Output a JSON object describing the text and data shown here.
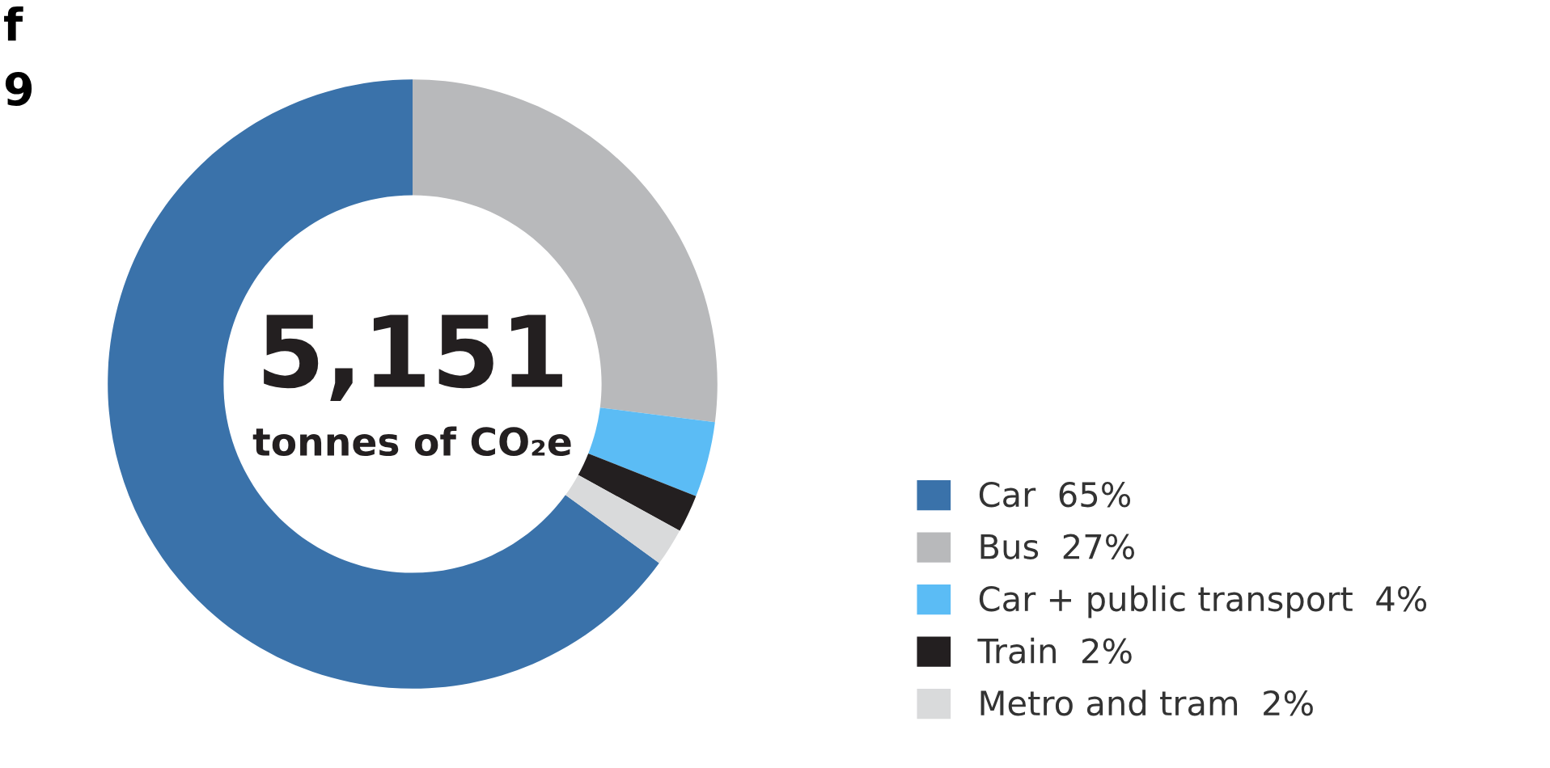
{
  "chart_data": {
    "type": "donut",
    "categories": [
      "Car",
      "Bus",
      "Car + public transport",
      "Train",
      "Metro and tram"
    ],
    "values": [
      65,
      27,
      4,
      2,
      2
    ],
    "colors": [
      "#3a72aa",
      "#b8b9bb",
      "#5bbcf5",
      "#231f20",
      "#d9dadb"
    ],
    "value_labels": [
      "65%",
      "27%",
      "4%",
      "2%",
      "2%"
    ],
    "annotations": [
      "5,151",
      "tonnes of CO₂e",
      "f",
      "9"
    ],
    "legend": "right"
  }
}
